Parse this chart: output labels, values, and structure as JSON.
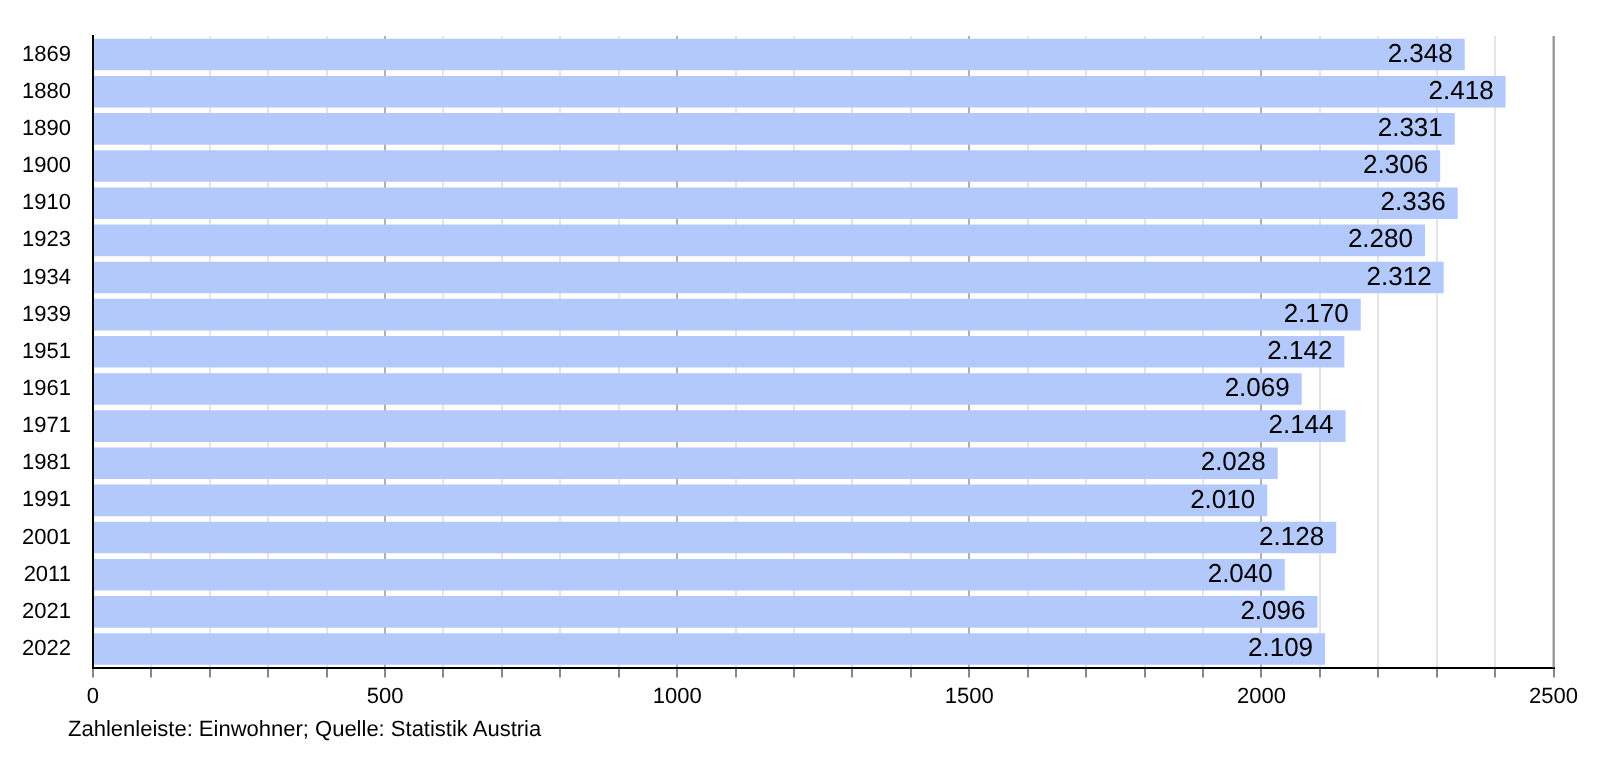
{
  "chart_data": {
    "type": "bar",
    "orientation": "horizontal",
    "categories": [
      "1869",
      "1880",
      "1890",
      "1900",
      "1910",
      "1923",
      "1934",
      "1939",
      "1951",
      "1961",
      "1971",
      "1981",
      "1991",
      "2001",
      "2011",
      "2021",
      "2022"
    ],
    "values": [
      2348,
      2418,
      2331,
      2306,
      2336,
      2280,
      2312,
      2170,
      2142,
      2069,
      2144,
      2028,
      2010,
      2128,
      2040,
      2096,
      2109
    ],
    "value_labels": [
      "2.348",
      "2.418",
      "2.331",
      "2.306",
      "2.336",
      "2.280",
      "2.312",
      "2.170",
      "2.142",
      "2.069",
      "2.144",
      "2.028",
      "2.010",
      "2.128",
      "2.040",
      "2.096",
      "2.109"
    ],
    "color": "#b3c8fb",
    "xlim": [
      0,
      2500
    ],
    "xticks": [
      0,
      {
        "value": 100,
        "label": null
      },
      {
        "value": 200,
        "label": null
      },
      {
        "value": 300,
        "label": null
      },
      {
        "value": 400,
        "label": null
      },
      500,
      {
        "value": 600,
        "label": null
      },
      {
        "value": 700,
        "label": null
      },
      {
        "value": 800,
        "label": null
      },
      {
        "value": 900,
        "label": null
      },
      1000,
      {
        "value": 1100,
        "label": null
      },
      {
        "value": 1200,
        "label": null
      },
      {
        "value": 1300,
        "label": null
      },
      {
        "value": 1400,
        "label": null
      },
      1500,
      {
        "value": 1600,
        "label": null
      },
      {
        "value": 1700,
        "label": null
      },
      {
        "value": 1800,
        "label": null
      },
      {
        "value": 1900,
        "label": null
      },
      2000,
      {
        "value": 2100,
        "label": null
      },
      {
        "value": 2200,
        "label": null
      },
      {
        "value": 2300,
        "label": null
      },
      {
        "value": 2400,
        "label": null
      },
      2500
    ],
    "grid": "x",
    "legend": false,
    "annotations": [
      "Zahlenleiste: Einwohner; Quelle: Statistik Austria"
    ]
  }
}
